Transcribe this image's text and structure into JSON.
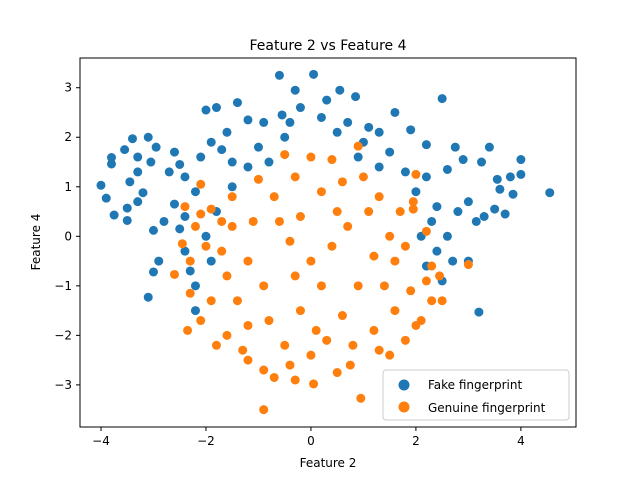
{
  "chart_data": {
    "type": "scatter",
    "title": "Feature 2 vs Feature 4",
    "xlabel": "Feature 2",
    "ylabel": "Feature 4",
    "xlim": [
      -4.4,
      5.05
    ],
    "ylim": [
      -3.85,
      3.6
    ],
    "xticks": [
      -4,
      -2,
      0,
      2,
      4
    ],
    "yticks": [
      -3,
      -2,
      -1,
      0,
      1,
      2,
      3
    ],
    "grid": false,
    "legend_position": "lower-right",
    "series": [
      {
        "name": "Fake fingerprint",
        "color": "#1f77b4",
        "points": [
          [
            -4.0,
            1.03
          ],
          [
            -3.9,
            0.77
          ],
          [
            -3.8,
            1.59
          ],
          [
            -3.8,
            1.46
          ],
          [
            -3.75,
            0.43
          ],
          [
            -3.55,
            1.75
          ],
          [
            -3.4,
            1.97
          ],
          [
            -3.5,
            0.57
          ],
          [
            -3.5,
            0.32
          ],
          [
            -3.45,
            1.1
          ],
          [
            -3.3,
            1.6
          ],
          [
            -3.3,
            0.7
          ],
          [
            -3.2,
            0.88
          ],
          [
            -3.1,
            2.0
          ],
          [
            -3.0,
            0.12
          ],
          [
            -3.0,
            -0.72
          ],
          [
            -2.9,
            -0.5
          ],
          [
            -3.1,
            -1.23
          ],
          [
            -2.95,
            1.8
          ],
          [
            -2.6,
            1.7
          ],
          [
            -2.6,
            0.65
          ],
          [
            -2.5,
            1.45
          ],
          [
            -2.5,
            0.15
          ],
          [
            -2.4,
            -0.3
          ],
          [
            -2.2,
            -1.0
          ],
          [
            -2.0,
            2.55
          ],
          [
            -1.8,
            2.6
          ],
          [
            -1.4,
            2.7
          ],
          [
            -1.2,
            2.35
          ],
          [
            -0.9,
            2.3
          ],
          [
            -0.6,
            3.25
          ],
          [
            -0.55,
            2.45
          ],
          [
            -0.3,
            2.95
          ],
          [
            -0.2,
            2.6
          ],
          [
            0.05,
            3.27
          ],
          [
            0.3,
            2.75
          ],
          [
            0.55,
            2.95
          ],
          [
            0.85,
            2.82
          ],
          [
            1.1,
            2.2
          ],
          [
            1.6,
            2.5
          ],
          [
            1.9,
            2.15
          ],
          [
            2.2,
            1.85
          ],
          [
            2.5,
            2.78
          ],
          [
            2.6,
            1.35
          ],
          [
            2.75,
            1.8
          ],
          [
            2.9,
            1.55
          ],
          [
            3.0,
            0.7
          ],
          [
            3.25,
            1.5
          ],
          [
            3.4,
            1.8
          ],
          [
            3.55,
            1.15
          ],
          [
            3.6,
            0.95
          ],
          [
            3.8,
            1.2
          ],
          [
            3.85,
            0.85
          ],
          [
            4.0,
            1.55
          ],
          [
            4.0,
            1.25
          ],
          [
            4.55,
            0.88
          ],
          [
            3.7,
            0.45
          ],
          [
            3.5,
            0.55
          ],
          [
            3.15,
            0.3
          ],
          [
            2.6,
            0.0
          ],
          [
            2.7,
            -0.5
          ],
          [
            3.0,
            -0.5
          ],
          [
            2.2,
            -0.6
          ],
          [
            3.2,
            -1.53
          ],
          [
            -2.2,
            -1.5
          ],
          [
            -1.9,
            1.9
          ],
          [
            -1.5,
            1.5
          ],
          [
            -1.0,
            1.8
          ],
          [
            -0.5,
            2.0
          ],
          [
            0.5,
            2.1
          ],
          [
            1.0,
            1.9
          ],
          [
            1.5,
            1.7
          ],
          [
            1.8,
            1.3
          ],
          [
            2.2,
            1.2
          ],
          [
            2.4,
            0.6
          ],
          [
            -2.2,
            0.9
          ],
          [
            -1.8,
            0.5
          ],
          [
            -1.5,
            1.0
          ],
          [
            -1.2,
            1.4
          ],
          [
            -0.8,
            1.5
          ],
          [
            0.9,
            1.6
          ],
          [
            1.3,
            1.4
          ],
          [
            2.0,
            0.9
          ],
          [
            2.3,
            0.3
          ],
          [
            -2.4,
            1.2
          ],
          [
            -2.7,
            1.3
          ],
          [
            -2.8,
            0.3
          ],
          [
            -2.3,
            -0.7
          ],
          [
            -1.9,
            -0.5
          ],
          [
            2.5,
            -0.9
          ],
          [
            2.8,
            0.5
          ],
          [
            3.3,
            0.4
          ],
          [
            -3.3,
            1.3
          ],
          [
            -3.05,
            1.5
          ],
          [
            -0.4,
            2.3
          ],
          [
            0.2,
            2.4
          ],
          [
            0.7,
            2.3
          ],
          [
            1.3,
            2.1
          ],
          [
            -1.6,
            2.1
          ],
          [
            -2.1,
            1.6
          ],
          [
            -2.4,
            0.4
          ],
          [
            -2.0,
            0.0
          ],
          [
            2.1,
            0.0
          ],
          [
            2.4,
            -0.3
          ],
          [
            -1.7,
            1.75
          ]
        ]
      },
      {
        "name": "Genuine fingerprint",
        "color": "#ff7f0e",
        "points": [
          [
            -0.9,
            -3.5
          ],
          [
            0.95,
            -3.27
          ],
          [
            -0.7,
            -2.85
          ],
          [
            0.05,
            -2.98
          ],
          [
            -0.3,
            -2.9
          ],
          [
            0.5,
            -2.75
          ],
          [
            0.75,
            -2.6
          ],
          [
            -0.9,
            -2.7
          ],
          [
            -1.2,
            -2.5
          ],
          [
            1.5,
            -2.4
          ],
          [
            -1.8,
            -2.2
          ],
          [
            1.8,
            -2.1
          ],
          [
            -1.6,
            -2.0
          ],
          [
            2.0,
            -1.8
          ],
          [
            2.1,
            -1.7
          ],
          [
            -2.1,
            -1.7
          ],
          [
            -2.35,
            -1.9
          ],
          [
            2.3,
            -1.3
          ],
          [
            2.5,
            -1.3
          ],
          [
            2.2,
            -0.9
          ],
          [
            2.3,
            -0.6
          ],
          [
            3.0,
            -0.57
          ],
          [
            -2.3,
            -1.15
          ],
          [
            -2.6,
            -0.77
          ],
          [
            -2.3,
            -0.5
          ],
          [
            -2.45,
            -0.15
          ],
          [
            -2.4,
            0.6
          ],
          [
            -2.1,
            0.45
          ],
          [
            -1.9,
            0.55
          ],
          [
            -2.1,
            1.05
          ],
          [
            -0.5,
            1.65
          ],
          [
            0.0,
            1.6
          ],
          [
            0.4,
            1.55
          ],
          [
            0.9,
            1.82
          ],
          [
            1.0,
            1.2
          ],
          [
            1.7,
            0.5
          ],
          [
            1.95,
            0.7
          ],
          [
            1.95,
            0.55
          ],
          [
            2.0,
            1.25
          ],
          [
            1.3,
            0.8
          ],
          [
            0.6,
            1.1
          ],
          [
            -0.3,
            1.2
          ],
          [
            -1.0,
            1.15
          ],
          [
            -1.5,
            0.8
          ],
          [
            -1.7,
            0.3
          ],
          [
            1.6,
            -1.5
          ],
          [
            1.2,
            -1.9
          ],
          [
            -1.2,
            -1.8
          ],
          [
            0.0,
            -2.4
          ],
          [
            -0.5,
            -2.2
          ],
          [
            0.3,
            -2.1
          ],
          [
            0.8,
            -2.2
          ],
          [
            -1.4,
            -1.3
          ],
          [
            -1.6,
            -0.8
          ],
          [
            -1.7,
            -0.3
          ],
          [
            -1.5,
            0.2
          ],
          [
            1.5,
            0.0
          ],
          [
            1.6,
            -0.5
          ],
          [
            1.4,
            -1.0
          ],
          [
            1.8,
            -0.2
          ],
          [
            -0.8,
            -1.7
          ],
          [
            0.6,
            -1.6
          ],
          [
            -0.2,
            -1.5
          ],
          [
            0.2,
            0.9
          ],
          [
            -0.7,
            0.8
          ],
          [
            1.1,
            0.5
          ],
          [
            -1.1,
            0.3
          ],
          [
            0.9,
            -1.0
          ],
          [
            -0.9,
            -1.0
          ],
          [
            0.0,
            -0.5
          ],
          [
            0.4,
            -0.2
          ],
          [
            -0.4,
            -0.1
          ],
          [
            0.7,
            0.2
          ],
          [
            -0.6,
            0.3
          ],
          [
            0.2,
            -1.0
          ],
          [
            -0.3,
            -0.8
          ],
          [
            1.2,
            -0.4
          ],
          [
            -1.2,
            -0.5
          ],
          [
            0.5,
            0.5
          ],
          [
            -0.2,
            0.4
          ],
          [
            2.2,
            0.1
          ],
          [
            -2.0,
            -0.2
          ],
          [
            -1.9,
            -1.3
          ],
          [
            1.9,
            -1.1
          ],
          [
            0.1,
            -1.9
          ],
          [
            -0.4,
            -2.6
          ],
          [
            1.3,
            -2.3
          ],
          [
            -1.3,
            -2.3
          ],
          [
            2.45,
            -0.8
          ],
          [
            -2.2,
            0.2
          ]
        ]
      }
    ]
  }
}
